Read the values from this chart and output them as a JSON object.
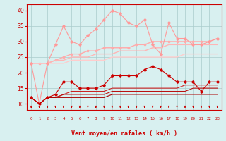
{
  "x": [
    0,
    1,
    2,
    3,
    4,
    5,
    6,
    7,
    8,
    9,
    10,
    11,
    12,
    13,
    14,
    15,
    16,
    17,
    18,
    19,
    20,
    21,
    22,
    23
  ],
  "series": [
    {
      "name": "rafales_top",
      "y": [
        23,
        10,
        23,
        29,
        35,
        30,
        29,
        32,
        34,
        37,
        40,
        39,
        36,
        35,
        37,
        29,
        26,
        36,
        31,
        31,
        29,
        29,
        30,
        31
      ],
      "color": "#FF9999",
      "lw": 0.8,
      "marker": "D",
      "ms": 1.8,
      "zorder": 3
    },
    {
      "name": "moy_high",
      "y": [
        23,
        23,
        23,
        24,
        25,
        26,
        26,
        27,
        27,
        28,
        28,
        28,
        28,
        29,
        29,
        30,
        30,
        30,
        30,
        30,
        30,
        30,
        30,
        31
      ],
      "color": "#FFAAAA",
      "lw": 1.0,
      "marker": "D",
      "ms": 1.5,
      "zorder": 2
    },
    {
      "name": "moy_mid",
      "y": [
        23,
        23,
        23,
        24,
        24,
        25,
        25,
        25,
        26,
        26,
        26,
        27,
        27,
        27,
        27,
        28,
        28,
        29,
        29,
        29,
        29,
        29,
        29,
        29
      ],
      "color": "#FFB5B5",
      "lw": 1.0,
      "marker": null,
      "ms": 0,
      "zorder": 2
    },
    {
      "name": "moy_low",
      "y": [
        23,
        23,
        23,
        23,
        23,
        24,
        24,
        24,
        24,
        24,
        25,
        25,
        25,
        25,
        25,
        25,
        25,
        25,
        25,
        26,
        26,
        26,
        26,
        26
      ],
      "color": "#FFCCCC",
      "lw": 1.0,
      "marker": null,
      "ms": 0,
      "zorder": 2
    },
    {
      "name": "vent_peak",
      "y": [
        12,
        10,
        12,
        13,
        17,
        17,
        15,
        15,
        15,
        16,
        19,
        19,
        19,
        19,
        21,
        22,
        21,
        19,
        17,
        17,
        17,
        14,
        17,
        17
      ],
      "color": "#CC0000",
      "lw": 0.8,
      "marker": "D",
      "ms": 1.8,
      "zorder": 4
    },
    {
      "name": "vent_low1",
      "y": [
        12,
        10,
        12,
        12,
        13,
        14,
        14,
        14,
        14,
        14,
        15,
        15,
        15,
        15,
        15,
        15,
        15,
        15,
        15,
        16,
        16,
        16,
        16,
        16
      ],
      "color": "#CC2222",
      "lw": 0.8,
      "marker": null,
      "ms": 0,
      "zorder": 3
    },
    {
      "name": "vent_low2",
      "y": [
        12,
        10,
        12,
        12,
        13,
        13,
        13,
        13,
        13,
        13,
        14,
        14,
        14,
        14,
        14,
        14,
        14,
        14,
        14,
        14,
        15,
        15,
        15,
        15
      ],
      "color": "#BB1111",
      "lw": 0.8,
      "marker": null,
      "ms": 0,
      "zorder": 3
    },
    {
      "name": "vent_baseline",
      "y": [
        12,
        10,
        12,
        12,
        12,
        12,
        12,
        12,
        12,
        12,
        13,
        13,
        13,
        13,
        13,
        13,
        13,
        13,
        13,
        13,
        13,
        13,
        13,
        13
      ],
      "color": "#AA0000",
      "lw": 0.8,
      "marker": null,
      "ms": 0,
      "zorder": 3
    }
  ],
  "xlabel": "Vent moyen/en rafales ( km/h )",
  "xlabel_color": "#CC0000",
  "xlabel_fontsize": 6.0,
  "bg_color": "#D8F0F0",
  "grid_color": "#AACCCC",
  "tick_color": "#CC0000",
  "xlim": [
    -0.5,
    23.5
  ],
  "ylim": [
    8,
    42
  ],
  "yticks": [
    10,
    15,
    20,
    25,
    30,
    35,
    40
  ],
  "xticks": [
    0,
    1,
    2,
    3,
    4,
    5,
    6,
    7,
    8,
    9,
    10,
    11,
    12,
    13,
    14,
    15,
    16,
    17,
    18,
    19,
    20,
    21,
    22,
    23
  ],
  "arrow_color": "#CC0000"
}
